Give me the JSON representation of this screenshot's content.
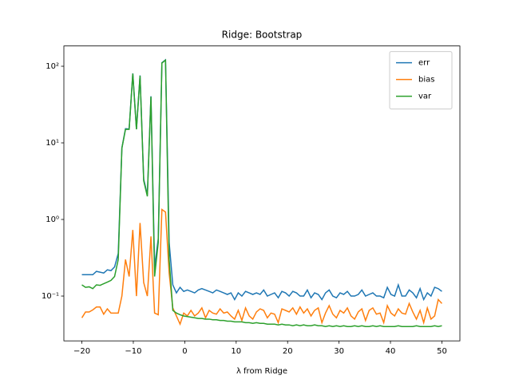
{
  "chart_data": {
    "type": "line",
    "title": "Ridge: Bootstrap",
    "xlabel": "λ from Ridge",
    "x": [
      -20,
      -19.29,
      -18.59,
      -17.88,
      -17.17,
      -16.46,
      -15.76,
      -15.05,
      -14.34,
      -13.64,
      -12.93,
      -12.22,
      -11.52,
      -10.81,
      -10.1,
      -9.39,
      -8.69,
      -7.98,
      -7.27,
      -6.57,
      -5.86,
      -5.15,
      -4.44,
      -3.74,
      -3.03,
      -2.32,
      -1.62,
      -0.91,
      -0.2,
      0.51,
      1.21,
      1.92,
      2.63,
      3.33,
      4.04,
      4.75,
      5.45,
      6.16,
      6.87,
      7.58,
      8.28,
      8.99,
      9.7,
      10.4,
      11.11,
      11.82,
      12.53,
      13.23,
      13.94,
      14.65,
      15.35,
      16.06,
      16.77,
      17.47,
      18.18,
      18.89,
      19.6,
      20.3,
      21.01,
      21.72,
      22.42,
      23.13,
      23.84,
      24.55,
      25.25,
      25.96,
      26.67,
      27.37,
      28.08,
      28.79,
      29.49,
      30.2,
      30.91,
      31.62,
      32.32,
      33.03,
      33.74,
      34.44,
      35.15,
      35.86,
      36.57,
      37.27,
      37.98,
      38.69,
      39.39,
      40.1,
      40.81,
      41.52,
      42.22,
      42.93,
      43.64,
      44.34,
      45.05,
      45.76,
      46.46,
      47.17,
      47.88,
      48.59,
      49.29,
      50
    ],
    "series": [
      {
        "name": "err",
        "color": "#1f77b4",
        "values": [
          0.19,
          0.19,
          0.19,
          0.19,
          0.21,
          0.205,
          0.2,
          0.22,
          0.215,
          0.24,
          0.36,
          8.6,
          15.3,
          15.2,
          80.7,
          15.1,
          75.9,
          3.35,
          2.1,
          40.6,
          0.24,
          0.56,
          111,
          121,
          0.5,
          0.14,
          0.11,
          0.13,
          0.115,
          0.12,
          0.115,
          0.11,
          0.12,
          0.125,
          0.12,
          0.115,
          0.11,
          0.12,
          0.115,
          0.11,
          0.105,
          0.11,
          0.09,
          0.11,
          0.1,
          0.115,
          0.11,
          0.105,
          0.11,
          0.105,
          0.12,
          0.1,
          0.105,
          0.11,
          0.095,
          0.115,
          0.11,
          0.1,
          0.115,
          0.11,
          0.1,
          0.1,
          0.12,
          0.095,
          0.11,
          0.105,
          0.09,
          0.11,
          0.12,
          0.1,
          0.095,
          0.11,
          0.105,
          0.115,
          0.1,
          0.1,
          0.105,
          0.12,
          0.1,
          0.105,
          0.11,
          0.1,
          0.1,
          0.095,
          0.13,
          0.105,
          0.1,
          0.14,
          0.1,
          0.1,
          0.12,
          0.11,
          0.095,
          0.125,
          0.09,
          0.11,
          0.1,
          0.13,
          0.125,
          0.115
        ]
      },
      {
        "name": "bias",
        "color": "#ff7f0e",
        "values": [
          0.052,
          0.062,
          0.062,
          0.066,
          0.072,
          0.072,
          0.058,
          0.068,
          0.06,
          0.06,
          0.06,
          0.1,
          0.3,
          0.18,
          0.73,
          0.1,
          0.9,
          0.15,
          0.1,
          0.6,
          0.06,
          0.057,
          1.35,
          1.25,
          0.2,
          0.07,
          0.055,
          0.043,
          0.06,
          0.055,
          0.065,
          0.055,
          0.06,
          0.07,
          0.052,
          0.065,
          0.06,
          0.058,
          0.068,
          0.06,
          0.062,
          0.055,
          0.05,
          0.065,
          0.048,
          0.07,
          0.055,
          0.05,
          0.062,
          0.068,
          0.065,
          0.052,
          0.06,
          0.058,
          0.045,
          0.068,
          0.065,
          0.062,
          0.07,
          0.058,
          0.072,
          0.06,
          0.068,
          0.055,
          0.065,
          0.07,
          0.045,
          0.06,
          0.075,
          0.058,
          0.052,
          0.065,
          0.06,
          0.07,
          0.055,
          0.05,
          0.062,
          0.068,
          0.048,
          0.065,
          0.07,
          0.058,
          0.06,
          0.045,
          0.075,
          0.06,
          0.055,
          0.068,
          0.06,
          0.058,
          0.08,
          0.062,
          0.05,
          0.065,
          0.045,
          0.07,
          0.05,
          0.055,
          0.09,
          0.08
        ]
      },
      {
        "name": "var",
        "color": "#2ca02c",
        "values": [
          0.14,
          0.13,
          0.132,
          0.125,
          0.14,
          0.138,
          0.145,
          0.152,
          0.16,
          0.18,
          0.3,
          8.5,
          15,
          15,
          80,
          15,
          75,
          3.2,
          2,
          40,
          0.18,
          0.5,
          110,
          120,
          0.3,
          0.065,
          0.06,
          0.057,
          0.055,
          0.054,
          0.053,
          0.052,
          0.051,
          0.051,
          0.05,
          0.05,
          0.049,
          0.049,
          0.048,
          0.048,
          0.047,
          0.047,
          0.046,
          0.046,
          0.046,
          0.045,
          0.045,
          0.044,
          0.045,
          0.044,
          0.044,
          0.043,
          0.043,
          0.043,
          0.042,
          0.043,
          0.042,
          0.042,
          0.041,
          0.042,
          0.041,
          0.042,
          0.041,
          0.041,
          0.042,
          0.041,
          0.041,
          0.04,
          0.041,
          0.04,
          0.041,
          0.04,
          0.041,
          0.04,
          0.04,
          0.041,
          0.04,
          0.041,
          0.04,
          0.04,
          0.041,
          0.04,
          0.041,
          0.04,
          0.04,
          0.04,
          0.04,
          0.041,
          0.04,
          0.04,
          0.04,
          0.04,
          0.041,
          0.04,
          0.04,
          0.04,
          0.04,
          0.041,
          0.04,
          0.041
        ]
      }
    ],
    "xlim": [
      -23.5,
      53.5
    ],
    "xticks": [
      {
        "value": -20,
        "label": "−20"
      },
      {
        "value": -10,
        "label": "−10"
      },
      0,
      10,
      20,
      30,
      40,
      50
    ],
    "ylim": [
      0.026,
      184
    ],
    "yticks": [
      {
        "value": 0.1,
        "label": "10⁻¹"
      },
      {
        "value": 1,
        "label": "10⁰"
      },
      {
        "value": 10,
        "label": "10¹"
      },
      {
        "value": 100,
        "label": "10²"
      }
    ],
    "log_y": true,
    "legend": "upper right"
  }
}
